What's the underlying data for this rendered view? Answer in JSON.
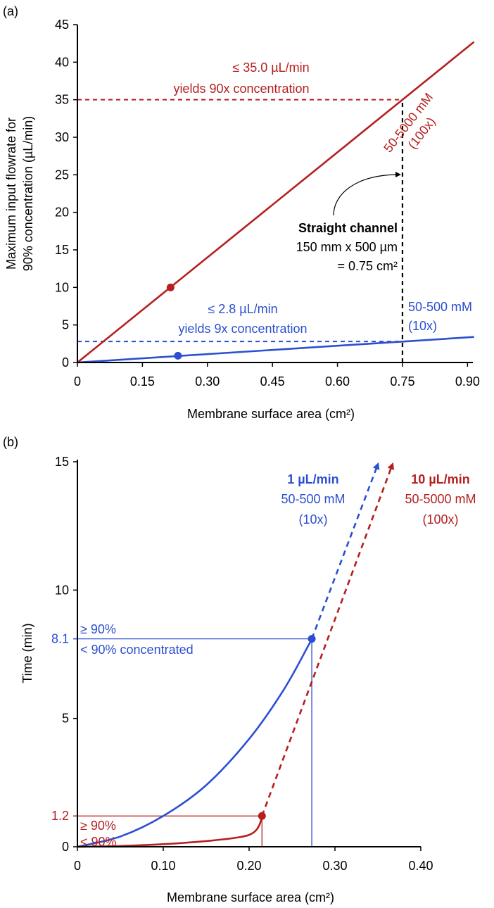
{
  "chart_data": [
    {
      "panel_label": "(a)",
      "type": "line",
      "xlabel": "Membrane surface area (cm²)",
      "ylabel_line1": "Maximum input flowrate for",
      "ylabel_line2": "90% concentration (µL/min)",
      "xlim": [
        0,
        0.91
      ],
      "ylim": [
        0,
        45
      ],
      "xticks": [
        "0",
        "0.15",
        "0.30",
        "0.45",
        "0.60",
        "0.75",
        "0.90"
      ],
      "xtick_values": [
        0,
        0.15,
        0.3,
        0.45,
        0.6,
        0.75,
        0.9
      ],
      "yticks": [
        "0",
        "5",
        "10",
        "15",
        "20",
        "25",
        "30",
        "35",
        "40",
        "45"
      ],
      "ytick_values": [
        0,
        5,
        10,
        15,
        20,
        25,
        30,
        35,
        40,
        45
      ],
      "colors": {
        "red": "#b51f1f",
        "blue": "#2c4fd1",
        "black": "#000000"
      },
      "series": [
        {
          "name": "50-5000 mM (100x)",
          "label_line1": "50-5000 mM",
          "label_line2": "(100x)",
          "color": "#b51f1f",
          "x": [
            0,
            0.915
          ],
          "y": [
            0,
            42.7
          ],
          "marker": {
            "x": 0.215,
            "y": 10.0
          }
        },
        {
          "name": "50-500 mM (10x)",
          "label_line1": "50-500 mM",
          "label_line2": "(10x)",
          "color": "#2c4fd1",
          "x": [
            0,
            0.915
          ],
          "y": [
            0,
            3.4
          ],
          "marker": {
            "x": 0.232,
            "y": 0.9
          }
        }
      ],
      "reference_lines": [
        {
          "type": "h",
          "y": 35.0,
          "x_to": 0.75,
          "color": "#b51f1f"
        },
        {
          "type": "h",
          "y": 2.8,
          "x_to": 0.75,
          "color": "#2c4fd1"
        },
        {
          "type": "v",
          "x": 0.75,
          "y_to": 35.0,
          "color": "#000000"
        }
      ],
      "annotations": {
        "red_line1": "≤ 35.0 µL/min",
        "red_line2": "yields 90x concentration",
        "blue_line1": "≤ 2.8 µL/min",
        "blue_line2": "yields 9x concentration",
        "channel_title": "Straight channel",
        "channel_dims": "150 mm x 500 µm",
        "channel_area": "= 0.75 cm²"
      }
    },
    {
      "panel_label": "(b)",
      "type": "line",
      "xlabel": "Membrane surface area (cm²)",
      "ylabel": "Time (min)",
      "xlim": [
        0,
        0.4
      ],
      "ylim": [
        0,
        15
      ],
      "xticks": [
        "0",
        "0.10",
        "0.20",
        "0.30",
        "0.40"
      ],
      "xtick_values": [
        0,
        0.1,
        0.2,
        0.3,
        0.4
      ],
      "yticks": [
        "0",
        "5",
        "10",
        "15"
      ],
      "ytick_values": [
        0,
        5,
        10,
        15
      ],
      "special_yticks": [
        {
          "label": "8.1",
          "value": 8.1,
          "color": "#2c4fd1"
        },
        {
          "label": "1.2",
          "value": 1.2,
          "color": "#b51f1f"
        }
      ],
      "series": [
        {
          "name": "1 µL/min",
          "sublabel1": "50-500 mM",
          "sublabel2": "(10x)",
          "color": "#2c4fd1",
          "curve": {
            "x": [
              0,
              0.05,
              0.1,
              0.15,
              0.2,
              0.24,
              0.27,
              0.273
            ],
            "y": [
              0,
              0.4,
              1.2,
              2.4,
              4.2,
              6.1,
              7.9,
              8.1
            ]
          },
          "marker": {
            "x": 0.273,
            "y": 8.1
          },
          "dashed": {
            "x": [
              0.273,
              0.35
            ],
            "y": [
              8.1,
              14.9
            ]
          }
        },
        {
          "name": "10 µL/min",
          "sublabel1": "50-5000 mM",
          "sublabel2": "(100x)",
          "color": "#b51f1f",
          "curve": {
            "x": [
              0,
              0.05,
              0.1,
              0.15,
              0.19,
              0.205,
              0.212,
              0.215
            ],
            "y": [
              0,
              0.03,
              0.1,
              0.22,
              0.38,
              0.55,
              0.85,
              1.2
            ]
          },
          "marker": {
            "x": 0.215,
            "y": 1.2
          },
          "dashed": {
            "x": [
              0.215,
              0.367
            ],
            "y": [
              1.2,
              14.9
            ]
          }
        }
      ],
      "annotations": {
        "blue_upper": "≥ 90%",
        "blue_lower": "< 90% concentrated",
        "red_upper": "≥ 90%",
        "red_lower": "< 90%"
      }
    }
  ]
}
